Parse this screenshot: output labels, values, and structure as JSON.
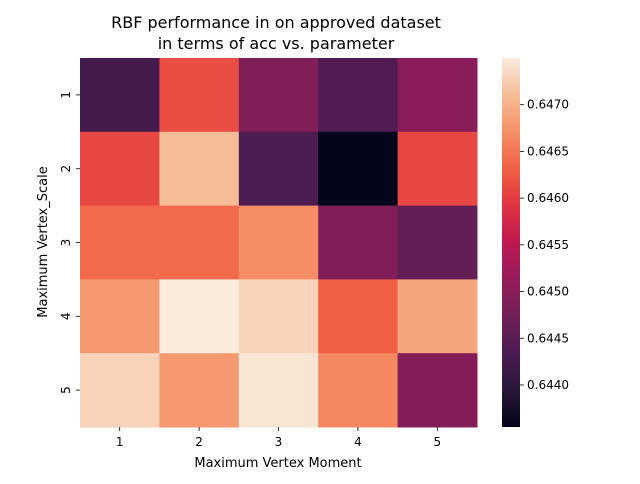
{
  "chart_data": {
    "type": "heatmap",
    "title_line1": "RBF performance in on approved dataset",
    "title_line2": "in terms of acc vs. parameter",
    "xlabel": "Maximum Vertex Moment",
    "ylabel": "Maximum Vertex_Scale",
    "x_categories": [
      "1",
      "2",
      "3",
      "4",
      "5"
    ],
    "y_categories": [
      "1",
      "2",
      "3",
      "4",
      "5"
    ],
    "values": [
      [
        0.64425,
        0.64615,
        0.6449,
        0.6444,
        0.645
      ],
      [
        0.6461,
        0.6471,
        0.64435,
        0.64355,
        0.6461
      ],
      [
        0.6464,
        0.6464,
        0.6467,
        0.6449,
        0.6446
      ],
      [
        0.6468,
        0.6475,
        0.6473,
        0.6463,
        0.6469
      ],
      [
        0.6473,
        0.6468,
        0.64745,
        0.64665,
        0.64495
      ]
    ],
    "colormap": "rocket",
    "vmin": 0.64355,
    "vmax": 0.6475,
    "colorbar_ticks": [
      0.644,
      0.6445,
      0.645,
      0.6455,
      0.646,
      0.6465,
      0.647
    ],
    "colorbar_tick_labels": [
      "0.6440",
      "0.6445",
      "0.6450",
      "0.6455",
      "0.6460",
      "0.6465",
      "0.6470"
    ]
  }
}
